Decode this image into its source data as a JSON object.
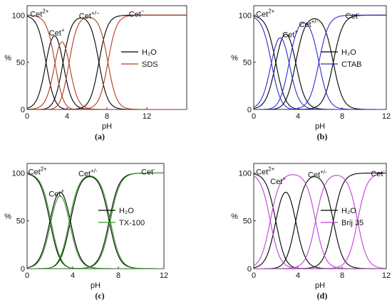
{
  "chart_data": [
    {
      "type": "line",
      "panel_label": "(a)",
      "xlabel": "pH",
      "ylabel": "%",
      "xlim": [
        0,
        16
      ],
      "ylim": [
        0,
        110
      ],
      "xticks": [
        0,
        4,
        8,
        12
      ],
      "yticks": [
        0,
        50,
        100
      ],
      "species_labels": [
        {
          "base": "Cet",
          "sup": "2+",
          "x": 0.3,
          "y": 106
        },
        {
          "base": "Cet",
          "sup": "+",
          "x": 2.2,
          "y": 86
        },
        {
          "base": "Cet",
          "sup": "+/−",
          "x": 5.2,
          "y": 104
        },
        {
          "base": "Cet",
          "sup": "−",
          "x": 10.2,
          "y": 106
        }
      ],
      "series": [
        {
          "name": "H₂O",
          "color": "#000000",
          "pKa": [
            1.9,
            3.6,
            7.2
          ],
          "x": [
            0,
            1,
            2,
            3,
            4,
            5,
            6,
            7,
            8,
            9,
            10,
            12,
            14,
            16
          ],
          "y_cet2plus": [
            98.8,
            88.8,
            44.2,
            5.7,
            0.2,
            0.0,
            0.0,
            0.0,
            0.0,
            0.0,
            0.0,
            0.0,
            0.0,
            0.0
          ],
          "y_cetplus": [
            1.2,
            10.9,
            53.6,
            70.0,
            28.0,
            3.8,
            0.4,
            0.0,
            0.0,
            0.0,
            0.0,
            0.0,
            0.0,
            0.0
          ],
          "y_zwitterion": [
            0.0,
            0.3,
            2.1,
            24.3,
            71.7,
            96.4,
            99.5,
            60.6,
            13.7,
            1.6,
            0.2,
            0.0,
            0.0,
            0.0
          ],
          "y_cetminus": [
            0.0,
            0.0,
            0.0,
            0.0,
            0.0,
            0.0,
            0.1,
            39.2,
            86.3,
            98.4,
            99.8,
            100.0,
            100.0,
            100.0
          ]
        },
        {
          "name": "SDS",
          "color": "#b23a22",
          "pKa": [
            2.8,
            4.2,
            8.1
          ],
          "x": [
            0,
            1,
            2,
            3,
            4,
            5,
            6,
            7,
            8,
            9,
            10,
            12,
            14,
            16
          ],
          "y_cet2plus": [
            99.8,
            98.4,
            86.3,
            38.6,
            5.7,
            0.2,
            0.0,
            0.0,
            0.0,
            0.0,
            0.0,
            0.0,
            0.0,
            0.0
          ],
          "y_cetplus": [
            0.2,
            1.6,
            13.7,
            61.4,
            62.3,
            13.7,
            1.6,
            0.2,
            0.0,
            0.0,
            0.0,
            0.0,
            0.0,
            0.0
          ],
          "y_zwitterion": [
            0.0,
            0.0,
            0.0,
            0.0,
            32.0,
            86.0,
            98.1,
            92.5,
            55.7,
            11.2,
            1.2,
            0.0,
            0.0,
            0.0
          ],
          "y_cetminus": [
            0.0,
            0.0,
            0.0,
            0.0,
            0.0,
            0.1,
            0.2,
            7.3,
            44.3,
            88.8,
            98.8,
            100.0,
            100.0,
            100.0
          ]
        }
      ],
      "legend": [
        "H₂O",
        "SDS"
      ],
      "legend_position": "right-middle"
    },
    {
      "type": "line",
      "panel_label": "(b)",
      "xlabel": "pH",
      "ylabel": "%",
      "xlim": [
        0,
        12
      ],
      "ylim": [
        0,
        110
      ],
      "xticks": [
        0,
        4,
        8,
        12
      ],
      "yticks": [
        0,
        50,
        100
      ],
      "species_labels": [
        {
          "base": "Cet",
          "sup": "2+",
          "x": 0.2,
          "y": 106
        },
        {
          "base": "Cet",
          "sup": "+",
          "x": 2.6,
          "y": 84
        },
        {
          "base": "Cet",
          "sup": "+/-",
          "x": 4.1,
          "y": 95
        },
        {
          "base": "Cet",
          "sup": "-",
          "x": 8.3,
          "y": 104
        }
      ],
      "series": [
        {
          "name": "H₂O",
          "color": "#000000",
          "pKa": [
            2.0,
            3.8,
            7.2
          ],
          "x": [
            0,
            1,
            2,
            3,
            4,
            5,
            6,
            7,
            8,
            9,
            10,
            11,
            12
          ],
          "y_cet2plus": [
            99.0,
            90.9,
            49.0,
            8.3,
            0.6,
            0.0,
            0.0,
            0.0,
            0.0,
            0.0,
            0.0,
            0.0,
            0.0
          ],
          "y_cetplus": [
            1.0,
            9.1,
            49.0,
            72.3,
            60.9,
            6.0,
            0.6,
            0.0,
            0.0,
            0.0,
            0.0,
            0.0,
            0.0
          ],
          "y_zwitterion": [
            0.0,
            0.0,
            1.0,
            19.4,
            38.5,
            93.9,
            98.8,
            61.3,
            13.7,
            1.6,
            0.2,
            0.0,
            0.0
          ],
          "y_cetminus": [
            0.0,
            0.0,
            0.0,
            0.0,
            0.0,
            0.1,
            0.6,
            38.7,
            86.3,
            98.4,
            99.8,
            100.0,
            100.0
          ]
        },
        {
          "name": "CTAB",
          "color": "#2b2bd6",
          "pKa": [
            1.6,
            3.2,
            5.9
          ],
          "x": [
            0,
            1,
            2,
            3,
            4,
            5,
            6,
            7,
            8,
            9,
            10,
            11,
            12
          ],
          "y_cet2plus": [
            97.6,
            79.8,
            28.4,
            2.4,
            0.1,
            0.0,
            0.0,
            0.0,
            0.0,
            0.0,
            0.0,
            0.0,
            0.0
          ],
          "y_cetplus": [
            2.4,
            19.9,
            62.5,
            60.1,
            13.4,
            1.5,
            0.1,
            0.0,
            0.0,
            0.0,
            0.0,
            0.0,
            0.0
          ],
          "y_zwitterion": [
            0.0,
            0.3,
            9.0,
            37.5,
            85.2,
            87.3,
            55.4,
            7.3,
            0.8,
            0.1,
            0.0,
            0.0,
            0.0
          ],
          "y_cetminus": [
            0.0,
            0.0,
            0.0,
            0.0,
            1.3,
            11.2,
            44.5,
            92.6,
            99.2,
            99.9,
            100.0,
            100.0,
            100.0
          ]
        }
      ],
      "legend": [
        "H₂O",
        "CTAB"
      ],
      "legend_position": "right-middle"
    },
    {
      "type": "line",
      "panel_label": "(c)",
      "xlabel": "pH",
      "ylabel": "%",
      "xlim": [
        0,
        12
      ],
      "ylim": [
        0,
        110
      ],
      "xticks": [
        0,
        4,
        8,
        12
      ],
      "yticks": [
        0,
        50,
        100
      ],
      "species_labels": [
        {
          "base": "Cet",
          "sup": "2+",
          "x": 0.1,
          "y": 106
        },
        {
          "base": "Cet",
          "sup": "+",
          "x": 1.9,
          "y": 83
        },
        {
          "base": "Cet",
          "sup": "+/-",
          "x": 4.5,
          "y": 104
        },
        {
          "base": "Cet",
          "sup": "-",
          "x": 10.0,
          "y": 106
        }
      ],
      "series": [
        {
          "name": "H₂O",
          "color": "#000000",
          "pKa": [
            2.0,
            3.8,
            7.2
          ],
          "x": [
            0,
            1,
            2,
            3,
            4,
            5,
            6,
            7,
            8,
            9,
            10,
            11,
            12
          ],
          "y_cet2plus": [
            99.0,
            90.9,
            49.0,
            8.3,
            0.6,
            0.0,
            0.0,
            0.0,
            0.0,
            0.0,
            0.0,
            0.0,
            0.0
          ],
          "y_cetplus": [
            1.0,
            9.1,
            49.0,
            72.3,
            36.5,
            6.0,
            0.6,
            0.0,
            0.0,
            0.0,
            0.0,
            0.0,
            0.0
          ],
          "y_zwitterion": [
            0.0,
            0.0,
            2.0,
            19.4,
            62.9,
            93.9,
            98.8,
            61.3,
            13.7,
            1.6,
            0.2,
            0.0,
            0.0
          ],
          "y_cetminus": [
            0.0,
            0.0,
            0.0,
            0.0,
            0.0,
            0.1,
            0.6,
            38.7,
            86.3,
            98.4,
            99.8,
            100.0,
            100.0
          ]
        },
        {
          "name": "TX-100",
          "color": "#2e9a1e",
          "pKa": [
            2.1,
            3.7,
            7.3
          ],
          "x": [
            0,
            1,
            2,
            3,
            4,
            5,
            6,
            7,
            8,
            9,
            10,
            11,
            12
          ],
          "y_cet2plus": [
            99.2,
            92.6,
            55.7,
            10.6,
            0.7,
            0.0,
            0.0,
            0.0,
            0.0,
            0.0,
            0.0,
            0.0,
            0.0
          ],
          "y_cetplus": [
            0.8,
            7.4,
            43.7,
            70.5,
            34.8,
            4.8,
            0.5,
            0.0,
            0.0,
            0.0,
            0.0,
            0.0,
            0.0
          ],
          "y_zwitterion": [
            0.0,
            0.0,
            0.6,
            18.9,
            64.5,
            95.2,
            99.0,
            66.4,
            16.6,
            2.0,
            0.2,
            0.0,
            0.0
          ],
          "y_cetminus": [
            0.0,
            0.0,
            0.0,
            0.0,
            0.0,
            0.0,
            0.5,
            33.6,
            83.4,
            98.0,
            99.8,
            100.0,
            100.0
          ]
        }
      ],
      "legend": [
        "H₂O",
        "TX-100"
      ],
      "legend_position": "right-middle"
    },
    {
      "type": "line",
      "panel_label": "(d)",
      "xlabel": "pH",
      "ylabel": "%",
      "xlim": [
        0,
        12
      ],
      "ylim": [
        0,
        110
      ],
      "xticks": [
        0,
        4,
        8,
        12
      ],
      "yticks": [
        0,
        50,
        100
      ],
      "species_labels": [
        {
          "base": "Cet",
          "sup": "2+",
          "x": 0.2,
          "y": 106
        },
        {
          "base": "Cet",
          "sup": "+",
          "x": 1.5,
          "y": 96
        },
        {
          "base": "Cet",
          "sup": "+/-",
          "x": 4.9,
          "y": 103
        },
        {
          "base": "Cet",
          "sup": "-",
          "x": 10.6,
          "y": 104
        }
      ],
      "series": [
        {
          "name": "H₂O",
          "color": "#000000",
          "pKa": [
            2.0,
            3.8,
            7.2
          ],
          "x": [
            0,
            1,
            2,
            3,
            4,
            5,
            6,
            7,
            8,
            9,
            10,
            11,
            12
          ],
          "y_cet2plus": [
            99.0,
            90.9,
            49.0,
            8.3,
            0.6,
            0.0,
            0.0,
            0.0,
            0.0,
            0.0,
            0.0,
            0.0,
            0.0
          ],
          "y_cetplus": [
            1.0,
            9.1,
            49.0,
            72.3,
            36.5,
            6.0,
            0.6,
            0.0,
            0.0,
            0.0,
            0.0,
            0.0,
            0.0
          ],
          "y_zwitterion": [
            0.0,
            0.0,
            2.0,
            19.4,
            62.9,
            93.9,
            98.8,
            61.3,
            13.7,
            1.6,
            0.2,
            0.0,
            0.0
          ],
          "y_cetminus": [
            0.0,
            0.0,
            0.0,
            0.0,
            0.0,
            0.1,
            0.6,
            38.7,
            86.3,
            98.4,
            99.8,
            100.0,
            100.0
          ]
        },
        {
          "name": "Brij 35",
          "color": "#c040d8",
          "pKa": [
            1.5,
            5.6,
            9.4
          ],
          "x": [
            0,
            1,
            2,
            3,
            4,
            5,
            6,
            7,
            8,
            9,
            10,
            11,
            12
          ],
          "y_cet2plus": [
            96.9,
            76.0,
            24.0,
            3.1,
            0.3,
            0.0,
            0.0,
            0.0,
            0.0,
            0.0,
            0.0,
            0.0,
            0.0
          ],
          "y_cetplus": [
            3.1,
            24.0,
            75.8,
            96.4,
            95.3,
            79.9,
            28.5,
            3.8,
            0.4,
            0.0,
            0.0,
            0.0,
            0.0
          ],
          "y_zwitterion": [
            0.0,
            0.0,
            0.2,
            0.5,
            4.4,
            20.1,
            71.4,
            95.8,
            95.4,
            71.3,
            20.1,
            2.5,
            0.2
          ],
          "y_cetminus": [
            0.0,
            0.0,
            0.0,
            0.0,
            0.0,
            0.0,
            0.1,
            0.4,
            4.2,
            28.7,
            79.9,
            97.5,
            99.8
          ]
        }
      ],
      "legend": [
        "H₂O",
        "Brij 35"
      ],
      "legend_position": "right-middle"
    }
  ]
}
